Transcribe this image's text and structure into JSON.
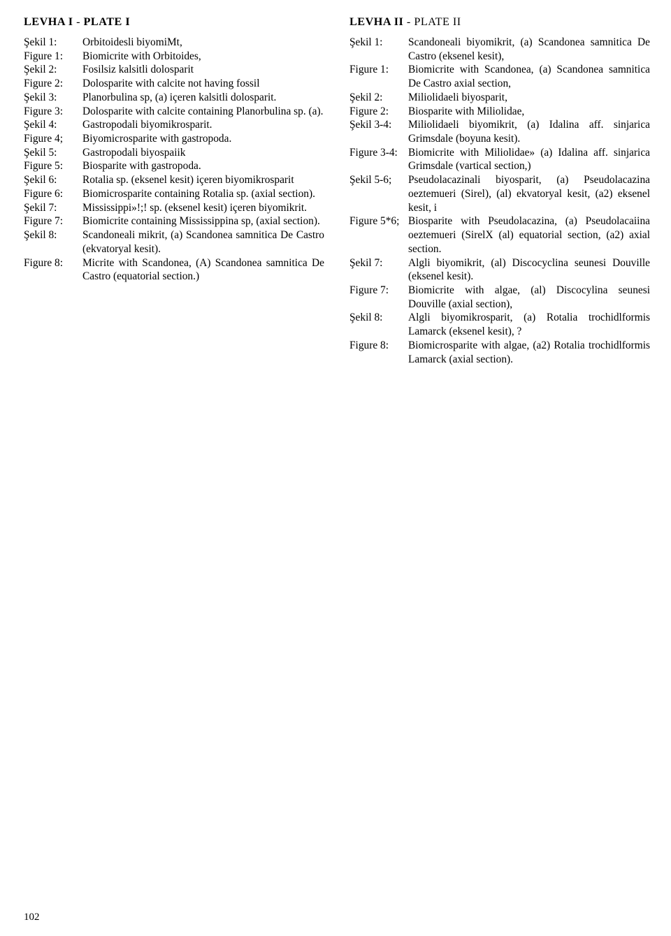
{
  "page_number": "102",
  "left": {
    "title_bold": "LEVHA I",
    "title_sep": " - ",
    "title_light_bold": "PLATE I",
    "entries": [
      {
        "label": "Şekil 1:",
        "text": "Orbitoidesli biyomiMt,"
      },
      {
        "label": "Figure 1:",
        "text": "Biomicrite with Orbitoides,"
      },
      {
        "label": "Şekil 2:",
        "text": "Fosilsiz kalsitli dolosparit"
      },
      {
        "label": "Figure 2:",
        "text": "Dolosparite with calcite not having fossil"
      },
      {
        "label": "Şekil 3:",
        "text": "Planorbulina sp, (a) içeren kalsitli dolosparit."
      },
      {
        "label": "Figure 3:",
        "text": "Dolosparite with calcite containing Planorbulina sp. (a)."
      },
      {
        "label": "Şekil 4:",
        "text": "Gastropodali biyomikrosparit."
      },
      {
        "label": "Figure 4;",
        "text": "Biyomicrosparite with gastropoda."
      },
      {
        "label": "Şekil 5:",
        "text": "Gastropodali biyospaiik"
      },
      {
        "label": "Figure 5:",
        "text": "Biosparite with gastropoda."
      },
      {
        "label": "Şekil 6:",
        "text": "Rotalia sp. (eksenel kesit) içeren biyomikrosparit"
      },
      {
        "label": "Figure 6:",
        "text": "Biomicrosparite containing Rotalia sp. (axial section)."
      },
      {
        "label": "Şekil 7:",
        "text": "Mississippi»!;! sp. (eksenel kesit) içeren biyomikrit."
      },
      {
        "label": "Figure 7:",
        "text": "Biomicrite containing Mississippina sp, (axial section)."
      },
      {
        "label": "Şekil 8:",
        "text": "Scandoneali mikrit, (a) Scandonea samnitica De Castro (ekvatoryal kesit)."
      },
      {
        "label": "Figure 8:",
        "text": "Micrite with Scandonea, (A) Scandonea samnitica De Castro (equatorial section.)"
      }
    ]
  },
  "right": {
    "title_bold": "LEVHA II",
    "title_sep": " - ",
    "title_light": "PLATE II",
    "entries": [
      {
        "label": "Şekil 1:",
        "text": "Scandoneali biyomikrit, (a) Scandonea samnitica De Castro (eksenel kesit),"
      },
      {
        "label": "Figure 1:",
        "text": "Biomicrite with Scandonea, (a) Scandonea samnitica De Castro axial section,"
      },
      {
        "label": "Şekil 2:",
        "text": "Miliolidaeli biyosparit,"
      },
      {
        "label": "Figure 2:",
        "text": "Biosparite with Miliolidae,"
      },
      {
        "label": "Şekil 3-4:",
        "text": "Miliolidaeli biyomikrit, (a) Idalina aff. sinjarica Grimsdale (boyuna kesit)."
      },
      {
        "label": "Figure 3-4:",
        "text": "Biomicrite with Miliolidae» (a) Idalina aff. sinjarica Grimsdale (vartical section,)"
      },
      {
        "label": "Şekil 5-6;",
        "text": "Pseudolacazinali biyosparit, (a) Pseudolacazina oeztemueri (Sirel), (al) ekvatoryal kesit, (a2) eksenel kesit,          i"
      },
      {
        "label": "Figure 5*6;",
        "text": "Biosparite with Pseudolacazina, (a) Pseudolacaiina oeztemueri (SirelX (al) equatorial section, (a2) axial section."
      },
      {
        "label": "Şekil 7:",
        "text": "Algli biyomikrit, (al) Discocyclina seunesi Douville (eksenel kesit)."
      },
      {
        "label": "Figure 7:",
        "text": "Biomicrite with algae, (al) Discocylina seunesi Douville (axial section),"
      },
      {
        "label": "Şekil 8:",
        "text": "Algli biyomikrosparit, (a) Rotalia trochidlformis Lamarck (eksenel kesit),                              ?"
      },
      {
        "label": "Figure 8:",
        "text": "Biomicrosparite with algae, (a2) Rotalia trochidlformis Lamarck (axial section)."
      }
    ]
  }
}
